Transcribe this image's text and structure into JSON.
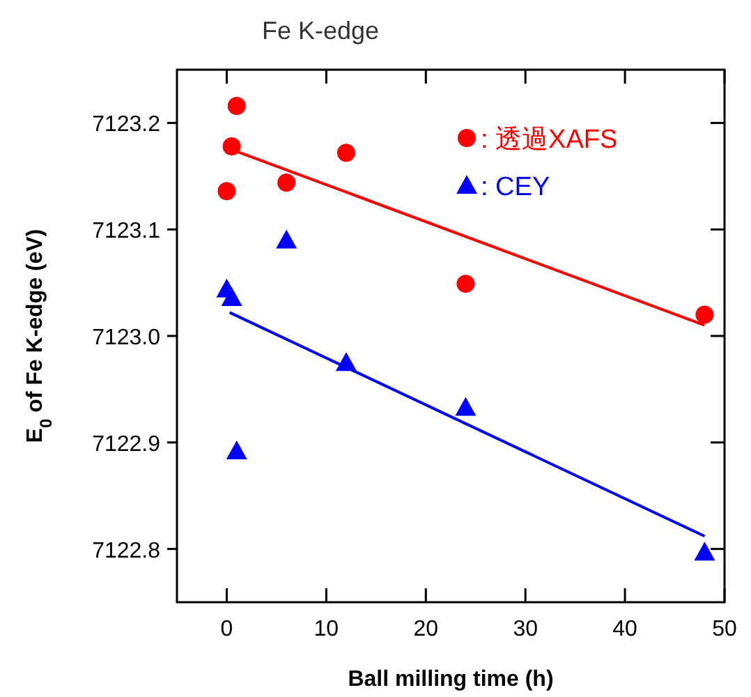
{
  "chart_data": {
    "type": "scatter",
    "title": "Fe K-edge",
    "xlabel": "Ball milling time (h)",
    "ylabel": "E$_{0}$ of Fe K-edge (eV)",
    "xlim": [
      -5,
      50
    ],
    "xticks": [
      0,
      10,
      20,
      30,
      40,
      50
    ],
    "ylim": [
      7122.75,
      7123.25
    ],
    "yticks": [
      7122.8,
      7122.9,
      {
        "value": 7123.0,
        "label": "7123.0"
      },
      7123.1,
      7123.2
    ],
    "grid": false,
    "legend": "top right",
    "series": [
      {
        "name": ": 透過XAFS",
        "color": "#ff0000",
        "marker": "circle",
        "x": [
          0,
          0.5,
          1,
          6,
          12,
          24,
          48
        ],
        "values": [
          7123.136,
          7123.178,
          7123.216,
          7123.144,
          7123.172,
          7123.049,
          7123.02
        ]
      },
      {
        "name": ": CEY",
        "color": "#0000ff",
        "marker": "triangle",
        "x": [
          0,
          0.5,
          1,
          6,
          12,
          24,
          48
        ],
        "values": [
          7123.044,
          7123.036,
          7122.892,
          7123.09,
          7122.975,
          7122.933,
          7122.797
        ]
      },
      {
        "type": "line",
        "color": "#ff0000",
        "x": [
          0.5,
          48
        ],
        "values": [
          7123.175,
          7123.01
        ]
      },
      {
        "type": "line",
        "color": "#0000ff",
        "x": [
          0.3,
          48
        ],
        "values": [
          7123.022,
          7122.812
        ]
      }
    ]
  }
}
